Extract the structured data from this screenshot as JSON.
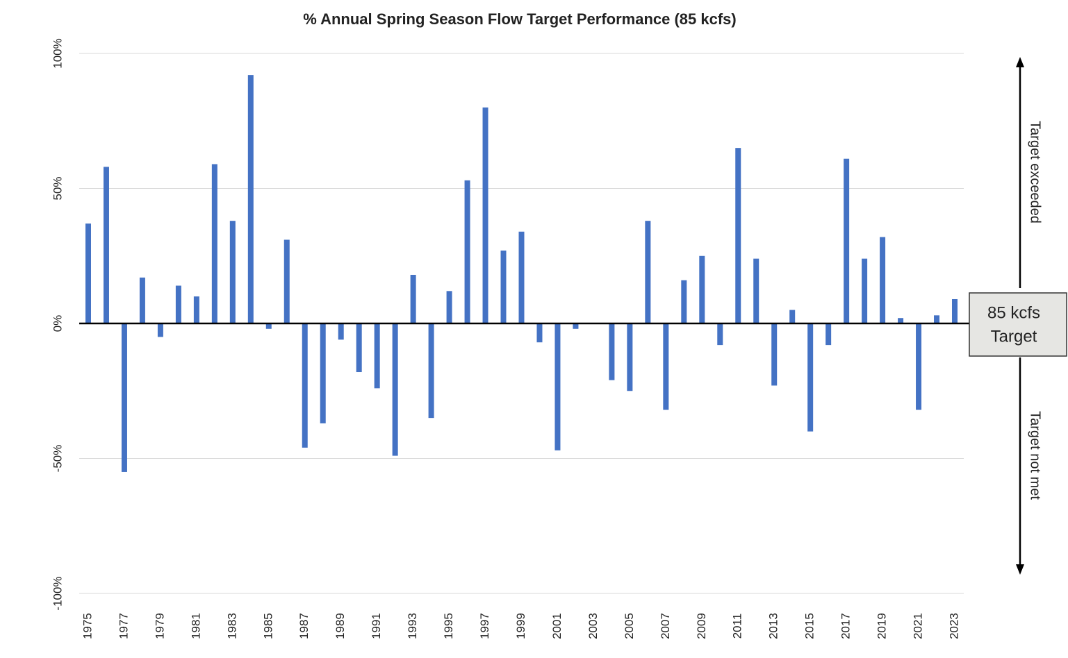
{
  "chart_data": {
    "type": "bar",
    "title": "% Annual Spring Season Flow Target Performance (85 kcfs)",
    "categories": [
      "1975",
      null,
      "1977",
      null,
      "1979",
      null,
      "1981",
      null,
      "1983",
      null,
      "1985",
      null,
      "1987",
      null,
      "1989",
      null,
      "1991",
      null,
      "1993",
      null,
      "1995",
      null,
      "1997",
      null,
      "1999",
      null,
      "2001",
      null,
      "2003",
      null,
      "2005",
      null,
      "2007",
      null,
      "2009",
      null,
      "2011",
      null,
      "2013",
      null,
      "2015",
      null,
      "2017",
      null,
      "2019",
      null,
      "2021",
      null,
      "2023"
    ],
    "values": [
      37,
      58,
      -55,
      17,
      -5,
      14,
      10,
      59,
      38,
      92,
      -2,
      31,
      -46,
      -37,
      -6,
      -18,
      -24,
      -49,
      18,
      -35,
      12,
      53,
      80,
      27,
      34,
      -7,
      -47,
      -2,
      0,
      -21,
      -25,
      38,
      -32,
      16,
      25,
      -8,
      65,
      24,
      -23,
      5,
      -40,
      -8,
      61,
      24,
      32,
      2,
      -32,
      3,
      9
    ],
    "color": "#4472c4",
    "ylim": [
      -100,
      100
    ],
    "yticks": [
      {
        "value": -100,
        "label": "-100%"
      },
      {
        "value": -50,
        "label": "-50%"
      },
      {
        "value": 0,
        "label": "0%"
      },
      {
        "value": 50,
        "label": "50%"
      },
      {
        "value": 100,
        "label": "100%"
      }
    ],
    "grid": true,
    "annotations": [
      "Target exceeded",
      "Target not met",
      "85 kcfs",
      "Target"
    ]
  }
}
